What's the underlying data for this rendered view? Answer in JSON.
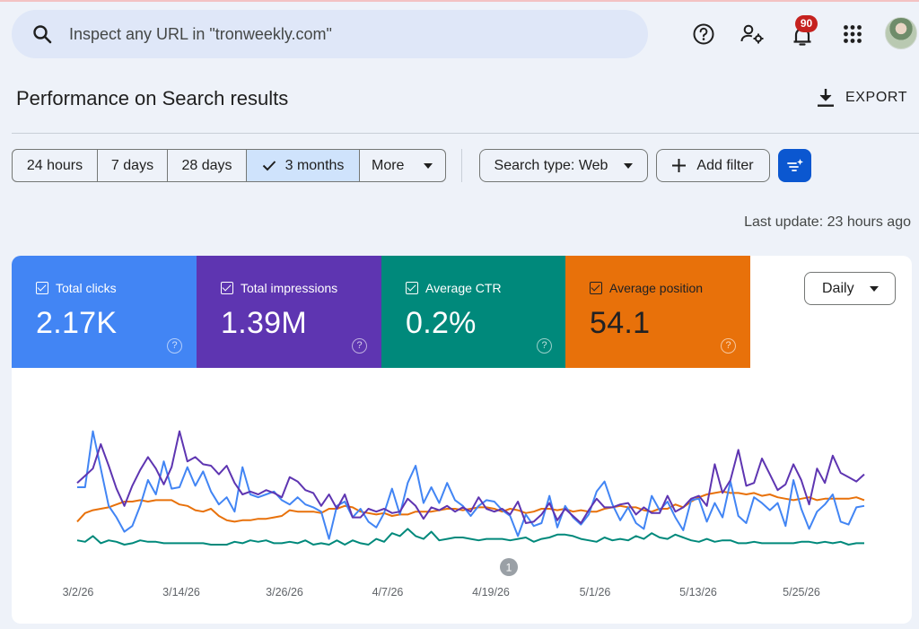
{
  "search": {
    "placeholder": "Inspect any URL in \"tronweekly.com\""
  },
  "header": {
    "notification_count": "90"
  },
  "page": {
    "title": "Performance on Search results",
    "export_label": "EXPORT"
  },
  "date_range": {
    "options": [
      "24 hours",
      "7 days",
      "28 days",
      "3 months"
    ],
    "selected": "3 months",
    "more_label": "More"
  },
  "filters": {
    "search_type": "Search type: Web",
    "add_filter": "Add filter"
  },
  "last_update": "Last update: 23 hours ago",
  "metrics": [
    {
      "label": "Total clicks",
      "value": "2.17K",
      "color": "#4285f4",
      "checked": true
    },
    {
      "label": "Total impressions",
      "value": "1.39M",
      "color": "#5e35b1",
      "checked": true
    },
    {
      "label": "Average CTR",
      "value": "0.2%",
      "color": "#00897b",
      "checked": true
    },
    {
      "label": "Average position",
      "value": "54.1",
      "color": "#e8710a",
      "checked": true
    }
  ],
  "granularity": "Daily",
  "annotation_marker": "1",
  "chart_data": {
    "type": "line",
    "x_tick_labels": [
      "3/2/26",
      "3/14/26",
      "3/26/26",
      "4/7/26",
      "4/19/26",
      "5/1/26",
      "5/13/26",
      "5/25/26"
    ],
    "series": [
      {
        "name": "Total clicks",
        "color": "#4285f4",
        "values": [
          45,
          45,
          84,
          58,
          32,
          24,
          14,
          18,
          32,
          50,
          40,
          63,
          44,
          45,
          59,
          46,
          56,
          42,
          33,
          38,
          28,
          59,
          40,
          38,
          40,
          42,
          36,
          33,
          38,
          33,
          31,
          28,
          9,
          32,
          35,
          24,
          30,
          21,
          17,
          27,
          44,
          26,
          48,
          60,
          34,
          45,
          34,
          48,
          36,
          32,
          25,
          32,
          36,
          35,
          29,
          25,
          11,
          26,
          18,
          20,
          39,
          17,
          32,
          24,
          19,
          26,
          42,
          49,
          33,
          22,
          31,
          20,
          16,
          39,
          29,
          35,
          24,
          15,
          36,
          37,
          21,
          34,
          24,
          49,
          25,
          20,
          38,
          34,
          29,
          34,
          18,
          50,
          30,
          16,
          28,
          33,
          40,
          21,
          19,
          31,
          32
        ]
      },
      {
        "name": "Total impressions",
        "color": "#5e35b1",
        "values": [
          48,
          53,
          58,
          75,
          60,
          44,
          32,
          46,
          57,
          66,
          58,
          47,
          59,
          84,
          63,
          66,
          61,
          60,
          54,
          60,
          48,
          40,
          42,
          40,
          43,
          41,
          38,
          52,
          49,
          43,
          41,
          32,
          40,
          30,
          40,
          24,
          24,
          30,
          28,
          30,
          27,
          28,
          37,
          32,
          23,
          31,
          29,
          32,
          28,
          31,
          28,
          38,
          30,
          28,
          30,
          26,
          35,
          20,
          21,
          26,
          34,
          22,
          30,
          25,
          20,
          29,
          37,
          31,
          31,
          33,
          34,
          26,
          31,
          27,
          27,
          39,
          28,
          31,
          37,
          39,
          32,
          61,
          41,
          50,
          71,
          46,
          48,
          65,
          54,
          43,
          47,
          61,
          50,
          33,
          58,
          48,
          67,
          55,
          52,
          49,
          54
        ]
      },
      {
        "name": "Average CTR",
        "color": "#00897b",
        "values": [
          8,
          7,
          11,
          6,
          8,
          7,
          5,
          6,
          8,
          7,
          7,
          6,
          6,
          6,
          6,
          6,
          6,
          5,
          5,
          5,
          7,
          6,
          8,
          7,
          8,
          6,
          6,
          7,
          6,
          8,
          5,
          6,
          5,
          8,
          5,
          8,
          6,
          5,
          9,
          7,
          13,
          11,
          16,
          11,
          9,
          14,
          8,
          9,
          10,
          10,
          9,
          8,
          9,
          9,
          9,
          8,
          9,
          10,
          7,
          9,
          10,
          12,
          12,
          11,
          9,
          8,
          7,
          10,
          8,
          9,
          8,
          11,
          9,
          13,
          10,
          9,
          12,
          10,
          8,
          7,
          9,
          7,
          8,
          8,
          6,
          6,
          7,
          6,
          6,
          6,
          6,
          6,
          7,
          7,
          6,
          7,
          6,
          7,
          5,
          6,
          6
        ]
      },
      {
        "name": "Average position",
        "color": "#e8710a",
        "values": [
          21,
          27,
          29,
          30,
          31,
          33,
          35,
          35,
          36,
          35,
          36,
          36,
          36,
          33,
          32,
          29,
          28,
          30,
          25,
          22,
          21,
          22,
          22,
          23,
          23,
          24,
          25,
          29,
          28,
          28,
          28,
          27,
          30,
          30,
          32,
          31,
          28,
          27,
          26,
          27,
          25,
          26,
          26,
          28,
          28,
          28,
          29,
          30,
          30,
          29,
          30,
          31,
          31,
          30,
          28,
          30,
          29,
          27,
          28,
          30,
          30,
          29,
          30,
          28,
          29,
          28,
          28,
          30,
          31,
          32,
          31,
          31,
          29,
          28,
          30,
          30,
          33,
          31,
          35,
          38,
          40,
          41,
          42,
          41,
          41,
          40,
          41,
          39,
          40,
          38,
          37,
          36,
          37,
          38,
          36,
          37,
          37,
          37,
          37,
          38,
          36
        ]
      }
    ]
  }
}
